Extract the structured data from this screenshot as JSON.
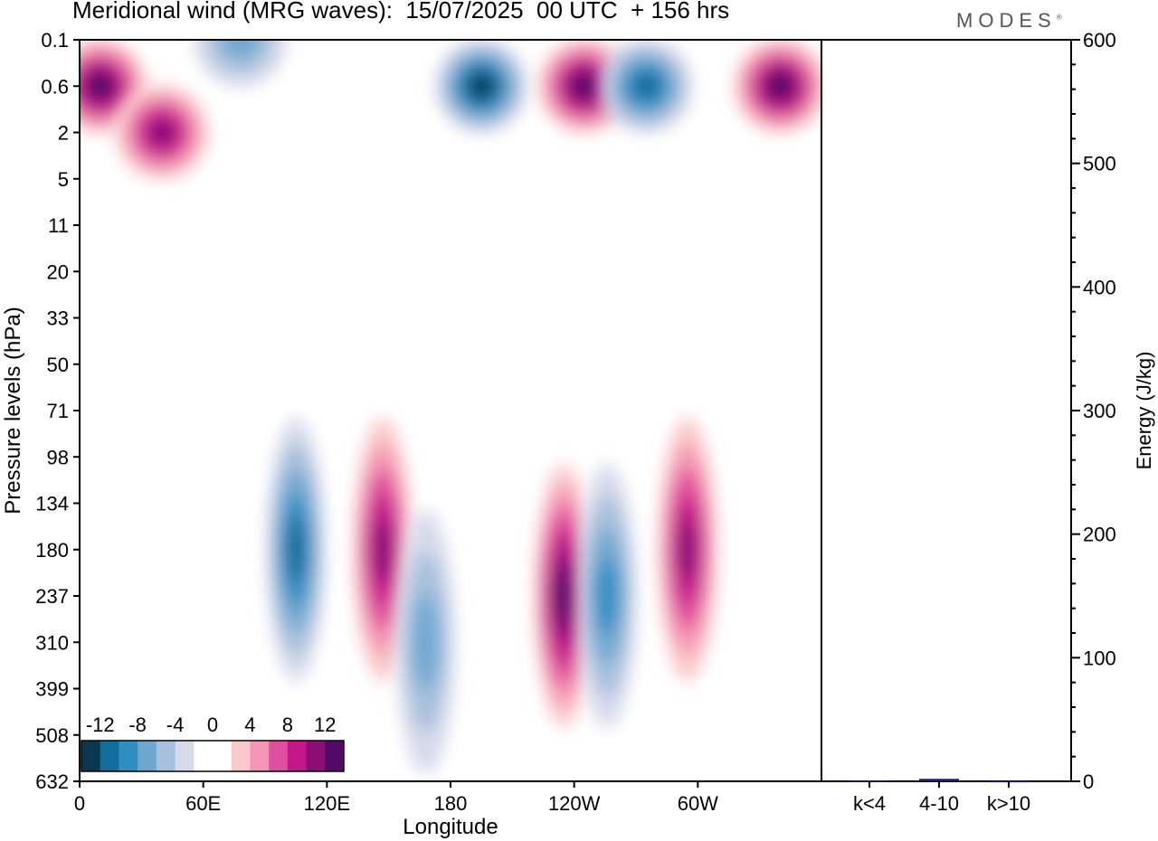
{
  "header": {
    "title": "Meridional wind (MRG waves):  15/07/2025  00 UTC  + 156 hrs",
    "brand": "MODES",
    "brand_mark": "®"
  },
  "chart_data": [
    {
      "type": "heatmap",
      "title": "Meridional wind (MRG waves):  15/07/2025  00 UTC  + 156 hrs",
      "xlabel": "Longitude",
      "ylabel": "Pressure levels (hPa)",
      "x_ticks": [
        "0",
        "60E",
        "120E",
        "180",
        "120W",
        "60W"
      ],
      "x_tick_degrees": [
        0,
        60,
        120,
        180,
        240,
        300
      ],
      "xlim": [
        0,
        360
      ],
      "y_ticks": [
        "0.1",
        "0.6",
        "2",
        "5",
        "11",
        "20",
        "33",
        "50",
        "71",
        "98",
        "134",
        "180",
        "237",
        "310",
        "399",
        "508",
        "632"
      ],
      "colorbar": {
        "labels": [
          "-12",
          "-8",
          "-4",
          "0",
          "4",
          "8",
          "12"
        ],
        "label_values": [
          -12,
          -8,
          -4,
          0,
          4,
          8,
          12
        ],
        "colors": [
          "#0b3850",
          "#106d9c",
          "#2f8dc2",
          "#6ea8d1",
          "#a6bfdc",
          "#d5d9ea",
          "#ffffff",
          "#ffffff",
          "#f9c9c9",
          "#f596b6",
          "#e04f9d",
          "#c2168a",
          "#8c0f78",
          "#520a66"
        ]
      },
      "features": [
        {
          "lon": 10,
          "level": "0.6",
          "sign": "positive",
          "peak": 12
        },
        {
          "lon": 40,
          "level": "2",
          "sign": "positive",
          "peak": 10
        },
        {
          "lon": 78,
          "level": "0.1",
          "sign": "negative",
          "peak": -6
        },
        {
          "lon": 195,
          "level": "0.6",
          "sign": "negative",
          "peak": -13
        },
        {
          "lon": 245,
          "level": "0.6",
          "sign": "positive",
          "peak": 13
        },
        {
          "lon": 275,
          "level": "0.6",
          "sign": "negative",
          "peak": -10
        },
        {
          "lon": 340,
          "level": "0.6",
          "sign": "positive",
          "peak": 12
        },
        {
          "lon": 105,
          "level": "180",
          "sign": "negative",
          "peak": -10
        },
        {
          "lon": 147,
          "level": "180",
          "sign": "positive",
          "peak": 9
        },
        {
          "lon": 168,
          "level": "310",
          "sign": "negative",
          "peak": -6
        },
        {
          "lon": 235,
          "level": "237",
          "sign": "positive",
          "peak": 12
        },
        {
          "lon": 256,
          "level": "237",
          "sign": "negative",
          "peak": -7
        },
        {
          "lon": 295,
          "level": "180",
          "sign": "positive",
          "peak": 9
        }
      ]
    },
    {
      "type": "bar",
      "ylabel": "Energy (J/kg)",
      "categories": [
        "k<4",
        "4-10",
        "k>10"
      ],
      "values": [
        0.5,
        2,
        0.3
      ],
      "ylim": [
        0,
        600
      ],
      "y_ticks": [
        "0",
        "100",
        "200",
        "300",
        "400",
        "500",
        "600"
      ],
      "color": "#1a1a6e"
    }
  ]
}
